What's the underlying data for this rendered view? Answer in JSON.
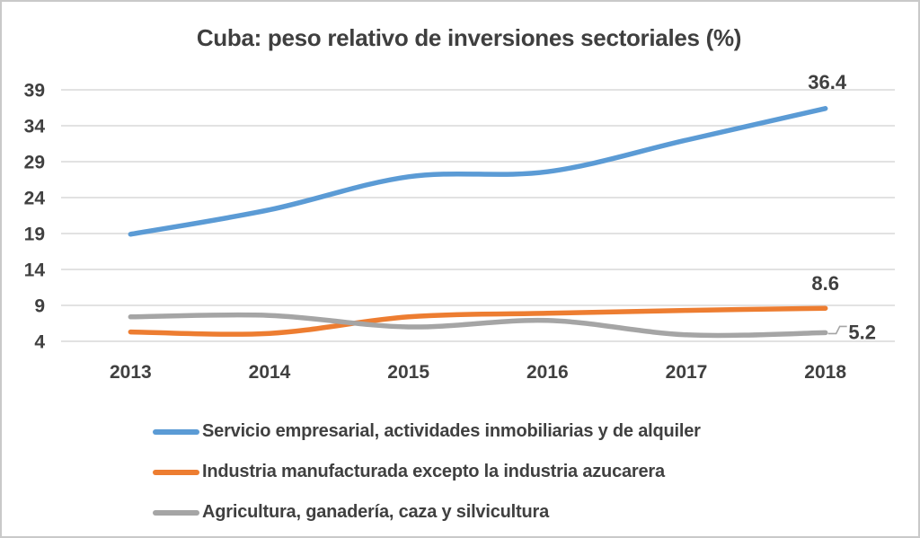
{
  "window": {
    "background": "#ffffff",
    "border_color": "#c9c9c9"
  },
  "chart_data": {
    "type": "line",
    "title": "Cuba: peso relativo de inversiones sectoriales (%)",
    "categories": [
      "2013",
      "2014",
      "2015",
      "2016",
      "2017",
      "2018"
    ],
    "series": [
      {
        "name": "Servicio empresarial, actividades inmobiliarias y de alquiler",
        "color": "#5B9BD5",
        "values": [
          18.9,
          22.3,
          26.9,
          27.6,
          32.0,
          36.4
        ],
        "end_label": "36.4"
      },
      {
        "name": "Industria manufacturada excepto la industria azucarera",
        "color": "#ED7D31",
        "values": [
          5.3,
          5.1,
          7.4,
          7.9,
          8.3,
          8.6
        ],
        "end_label": "8.6"
      },
      {
        "name": "Agricultura, ganadería, caza y silvicultura",
        "color": "#A5A5A5",
        "values": [
          7.4,
          7.6,
          6.0,
          6.9,
          4.9,
          5.2
        ],
        "end_label": "5.2"
      }
    ],
    "y_axis": {
      "ticks": [
        39,
        34,
        29,
        24,
        19,
        14,
        9,
        4
      ],
      "min": 4,
      "max": 39
    },
    "xlabel": "",
    "ylabel": "",
    "grid": true,
    "smoothed": true,
    "gridline_color": "#D9D9D9",
    "text_color": "#404040",
    "data_label_color": "#3f3f3f",
    "legend_position": "bottom"
  }
}
